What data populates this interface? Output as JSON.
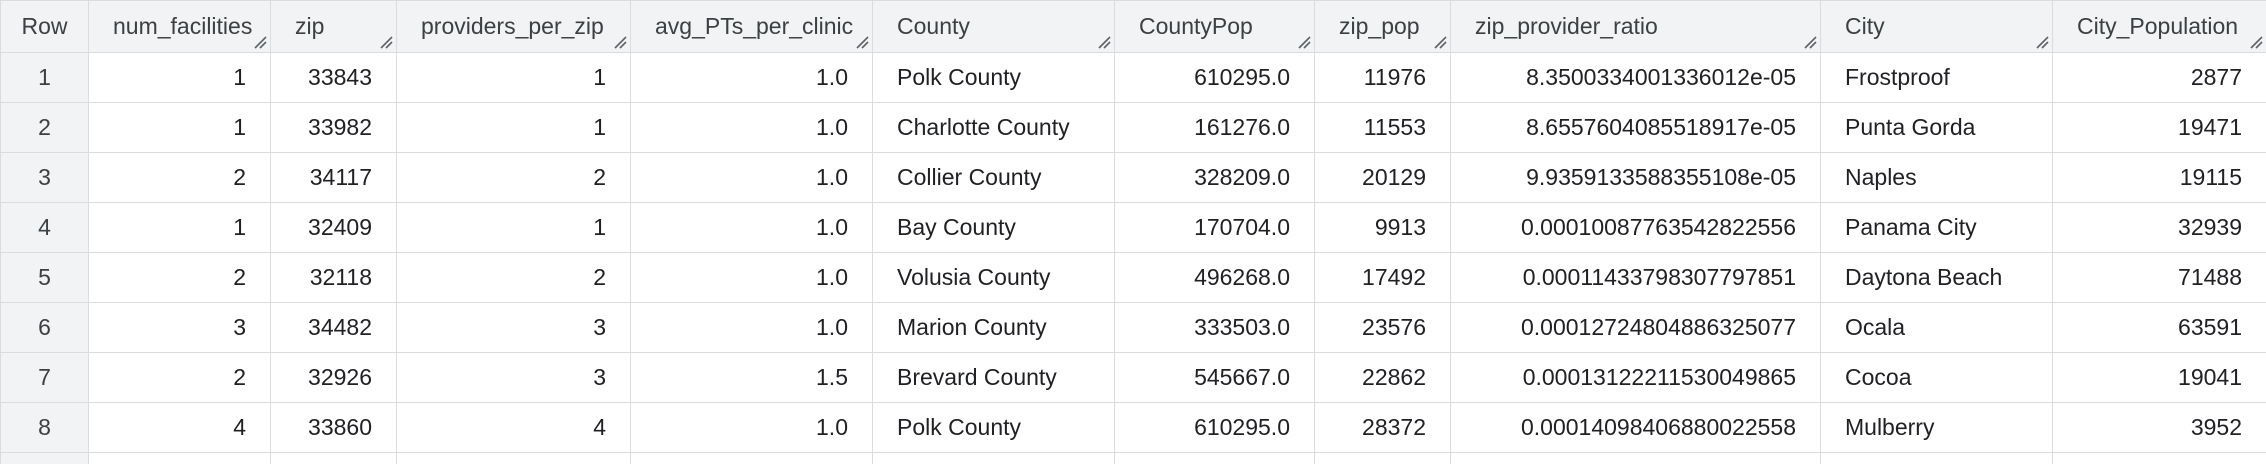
{
  "table": {
    "columns": [
      {
        "key": "row",
        "label": "Row"
      },
      {
        "key": "num_facilities",
        "label": "num_facilities"
      },
      {
        "key": "zip",
        "label": "zip"
      },
      {
        "key": "providers_per_zip",
        "label": "providers_per_zip"
      },
      {
        "key": "avg_PTs_per_clinic",
        "label": "avg_PTs_per_clinic"
      },
      {
        "key": "County",
        "label": "County"
      },
      {
        "key": "CountyPop",
        "label": "CountyPop"
      },
      {
        "key": "zip_pop",
        "label": "zip_pop"
      },
      {
        "key": "zip_provider_ratio",
        "label": "zip_provider_ratio"
      },
      {
        "key": "City",
        "label": "City"
      },
      {
        "key": "City_Population",
        "label": "City_Population"
      }
    ],
    "rows": [
      [
        "1",
        "1",
        "33843",
        "1",
        "1.0",
        "Polk County",
        "610295.0",
        "11976",
        "8.3500334001336012e-05",
        "Frostproof",
        "2877"
      ],
      [
        "2",
        "1",
        "33982",
        "1",
        "1.0",
        "Charlotte County",
        "161276.0",
        "11553",
        "8.6557604085518917e-05",
        "Punta Gorda",
        "19471"
      ],
      [
        "3",
        "2",
        "34117",
        "2",
        "1.0",
        "Collier County",
        "328209.0",
        "20129",
        "9.9359133588355108e-05",
        "Naples",
        "19115"
      ],
      [
        "4",
        "1",
        "32409",
        "1",
        "1.0",
        "Bay County",
        "170704.0",
        "9913",
        "0.00010087763542822556",
        "Panama City",
        "32939"
      ],
      [
        "5",
        "2",
        "32118",
        "2",
        "1.0",
        "Volusia County",
        "496268.0",
        "17492",
        "0.00011433798307797851",
        "Daytona Beach",
        "71488"
      ],
      [
        "6",
        "3",
        "34482",
        "3",
        "1.0",
        "Marion County",
        "333503.0",
        "23576",
        "0.00012724804886325077",
        "Ocala",
        "63591"
      ],
      [
        "7",
        "2",
        "32926",
        "3",
        "1.5",
        "Brevard County",
        "545667.0",
        "22862",
        "0.00013122211530049865",
        "Cocoa",
        "19041"
      ],
      [
        "8",
        "4",
        "33860",
        "4",
        "1.0",
        "Polk County",
        "610295.0",
        "28372",
        "0.00014098406880022558",
        "Mulberry",
        "3952"
      ]
    ]
  }
}
